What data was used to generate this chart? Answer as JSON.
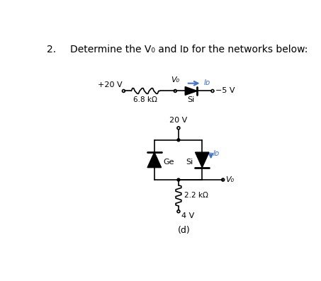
{
  "title_num": "2.",
  "title_text": "Determine the V₀ and Iᴅ for the networks below:",
  "label_d": "(d)",
  "bg_color": "#ffffff",
  "text_color": "#000000",
  "blue_color": "#4472c4",
  "top_circuit": {
    "v_left": "+20 V",
    "resistor_label": "6.8 kΩ",
    "v_node": "V₀",
    "current_label": "Iᴅ",
    "diode_label": "Si",
    "v_right": "−5 V"
  },
  "bottom_circuit": {
    "v_top": "20 V",
    "diode_left_label": "Ge",
    "diode_right_label": "Si",
    "current_label": "Iᴅ",
    "resistor_label": "2.2 kΩ",
    "v_bottom": "4 V",
    "vo_label": "V₀"
  }
}
